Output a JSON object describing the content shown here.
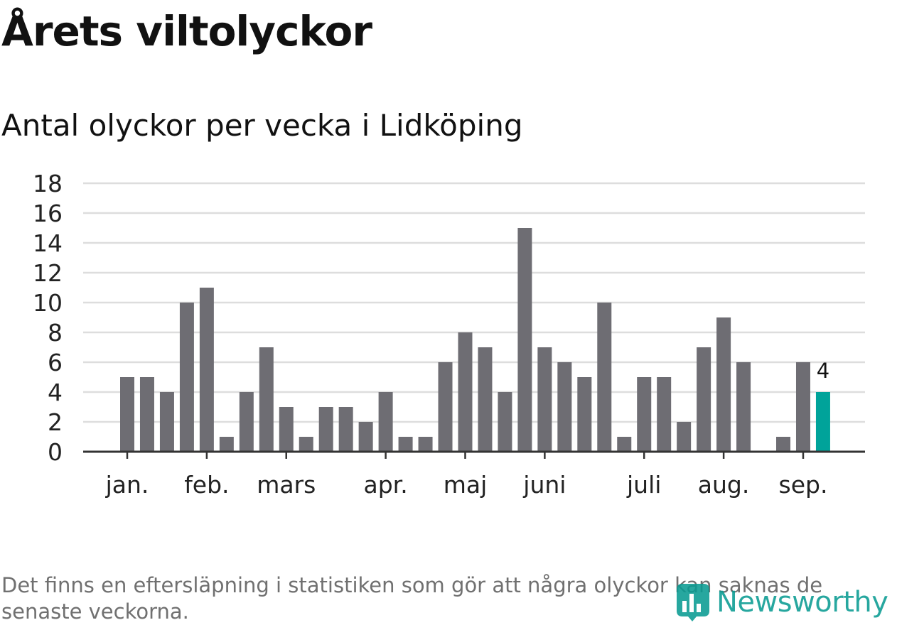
{
  "header": {
    "title": "Årets viltolyckor",
    "subtitle": "Antal olyckor per vecka i Lidköping"
  },
  "chart_data": {
    "type": "bar",
    "title": "Årets viltolyckor",
    "subtitle": "Antal olyckor per vecka i Lidköping",
    "xlabel": "",
    "ylabel": "",
    "ylim": [
      0,
      18
    ],
    "yticks": [
      0,
      2,
      4,
      6,
      8,
      10,
      12,
      14,
      16,
      18
    ],
    "grid": true,
    "legend": "none",
    "x_ticks": [
      {
        "label": "jan.",
        "week": 1
      },
      {
        "label": "feb.",
        "week": 5
      },
      {
        "label": "mars",
        "week": 9
      },
      {
        "label": "apr.",
        "week": 14
      },
      {
        "label": "maj",
        "week": 18
      },
      {
        "label": "juni",
        "week": 22
      },
      {
        "label": "juli",
        "week": 27
      },
      {
        "label": "aug.",
        "week": 31
      },
      {
        "label": "sep.",
        "week": 35
      }
    ],
    "weeks": [
      1,
      2,
      3,
      4,
      5,
      6,
      7,
      8,
      9,
      10,
      11,
      12,
      13,
      14,
      15,
      16,
      17,
      18,
      19,
      20,
      21,
      22,
      23,
      24,
      25,
      26,
      27,
      28,
      29,
      30,
      31,
      32,
      33,
      34,
      35,
      36
    ],
    "values": [
      5,
      5,
      4,
      10,
      11,
      1,
      4,
      7,
      3,
      1,
      3,
      3,
      2,
      4,
      1,
      1,
      6,
      8,
      7,
      4,
      15,
      7,
      6,
      5,
      10,
      1,
      5,
      5,
      2,
      7,
      9,
      6,
      0,
      1,
      6,
      4
    ],
    "highlight": {
      "index": 35,
      "value": 4,
      "label": "4",
      "color": "#00a39a"
    },
    "colors": {
      "bar": "#6e6d73",
      "highlight": "#00a39a",
      "grid": "#dddddd",
      "axis": "#333333"
    }
  },
  "footer": {
    "note": "Det finns en eftersläpning i statistiken som gör att några olyckor kan saknas de senaste veckorna.",
    "brand": "Newsworthy",
    "brand_icon": "bar-chart-icon"
  }
}
